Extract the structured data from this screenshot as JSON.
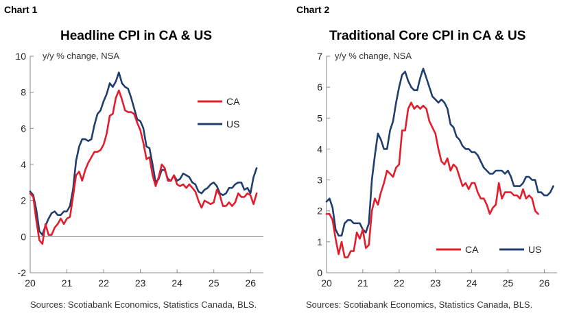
{
  "charts": [
    {
      "chart_number": "Chart 1",
      "source": "Sources: Scotiabank Economics, Statistics Canada, BLS.",
      "chart_data": {
        "type": "line",
        "title": "Headline CPI in CA & US",
        "ylabel": "y/y % change, NSA",
        "xlabel": "",
        "x_start": 2020.0,
        "x_step": 0.0833,
        "xlim": [
          2020,
          2026.35
        ],
        "ylim": [
          -2,
          10
        ],
        "yticks": [
          -2,
          0,
          2,
          4,
          6,
          8,
          10
        ],
        "xticks": [
          20,
          21,
          22,
          23,
          24,
          25,
          26
        ],
        "legend_position": "right",
        "series": [
          {
            "name": "CA",
            "color": "#e31d2b",
            "values": [
              2.4,
              2.2,
              0.9,
              -0.2,
              -0.4,
              0.7,
              0.1,
              0.1,
              0.5,
              0.7,
              1.0,
              0.7,
              1.0,
              1.1,
              2.2,
              3.4,
              3.6,
              3.1,
              3.7,
              4.1,
              4.4,
              4.7,
              4.7,
              4.8,
              5.1,
              5.7,
              6.7,
              6.8,
              7.7,
              8.1,
              7.6,
              7.0,
              6.9,
              6.9,
              6.8,
              6.3,
              5.9,
              5.2,
              4.3,
              4.4,
              3.4,
              2.8,
              3.3,
              4.0,
              3.8,
              3.1,
              3.1,
              3.4,
              2.9,
              2.8,
              2.9,
              2.7,
              2.9,
              2.7,
              2.5,
              2.0,
              1.6,
              2.0,
              1.9,
              1.8,
              1.9,
              2.6,
              2.3,
              1.7,
              1.7,
              1.9,
              1.7,
              1.9,
              2.4,
              2.2,
              2.2,
              2.4,
              2.3,
              1.8,
              2.4
            ]
          },
          {
            "name": "US",
            "color": "#1f3d6d",
            "values": [
              2.5,
              2.3,
              1.5,
              0.3,
              0.1,
              0.6,
              1.0,
              1.3,
              1.4,
              1.2,
              1.2,
              1.4,
              1.4,
              1.7,
              2.6,
              4.2,
              5.0,
              5.4,
              5.4,
              5.3,
              5.4,
              6.2,
              6.8,
              7.0,
              7.5,
              7.9,
              8.5,
              8.3,
              8.6,
              9.1,
              8.5,
              8.3,
              8.2,
              7.7,
              7.1,
              6.5,
              6.4,
              6.0,
              5.0,
              4.9,
              4.0,
              3.0,
              3.2,
              3.7,
              3.7,
              3.2,
              3.1,
              3.4,
              3.1,
              3.2,
              3.5,
              3.4,
              3.3,
              3.0,
              2.9,
              2.5,
              2.4,
              2.6,
              2.7,
              2.9,
              3.0,
              2.8,
              2.4,
              2.3,
              2.4,
              2.7,
              2.7,
              2.9,
              3.0,
              3.0,
              2.6,
              2.7,
              2.4,
              3.3,
              3.8
            ]
          }
        ]
      }
    },
    {
      "chart_number": "Chart 2",
      "source": "Sources: Scotiabank Economics, Statistics Canada, BLS.",
      "chart_data": {
        "type": "line",
        "title": "Traditional Core CPI in CA & US",
        "ylabel": "y/y % change, NSA",
        "xlabel": "",
        "x_start": 2020.0,
        "x_step": 0.0833,
        "xlim": [
          2020,
          2026.35
        ],
        "ylim": [
          0,
          7
        ],
        "yticks": [
          0,
          1,
          2,
          3,
          4,
          5,
          6,
          7
        ],
        "xticks": [
          20,
          21,
          22,
          23,
          24,
          25,
          26
        ],
        "legend_position": "bottom-right",
        "series": [
          {
            "name": "CA",
            "color": "#e31d2b",
            "values": [
              1.9,
              1.9,
              1.7,
              1.1,
              0.6,
              1.0,
              0.5,
              0.5,
              0.7,
              0.7,
              1.3,
              1.1,
              1.4,
              0.8,
              0.9,
              2.0,
              2.4,
              2.2,
              2.6,
              2.9,
              3.3,
              3.2,
              3.1,
              3.4,
              3.5,
              4.6,
              4.6,
              5.3,
              5.5,
              5.3,
              5.4,
              5.3,
              5.4,
              5.3,
              4.9,
              4.7,
              4.5,
              4.0,
              3.6,
              3.5,
              3.7,
              3.3,
              3.5,
              3.4,
              3.1,
              2.8,
              2.9,
              2.7,
              2.9,
              2.9,
              2.6,
              2.4,
              2.4,
              2.2,
              1.9,
              2.1,
              2.2,
              2.9,
              2.4,
              2.6,
              2.6,
              2.6,
              2.5,
              2.5,
              2.4,
              2.7,
              2.4,
              2.5,
              2.4,
              2.0,
              1.9
            ]
          },
          {
            "name": "US",
            "color": "#1f3d6d",
            "values": [
              2.3,
              2.4,
              2.1,
              1.4,
              1.2,
              1.2,
              1.6,
              1.7,
              1.7,
              1.6,
              1.6,
              1.6,
              1.4,
              1.3,
              1.6,
              3.0,
              3.8,
              4.5,
              4.3,
              4.0,
              4.0,
              4.6,
              4.9,
              5.5,
              6.0,
              6.4,
              6.5,
              6.2,
              6.0,
              5.9,
              5.9,
              6.3,
              6.6,
              6.3,
              6.0,
              5.7,
              5.6,
              5.5,
              5.6,
              5.5,
              5.3,
              4.8,
              4.7,
              4.4,
              4.3,
              4.1,
              4.0,
              4.0,
              3.9,
              3.9,
              3.8,
              3.6,
              3.4,
              3.3,
              3.2,
              3.2,
              3.3,
              3.3,
              3.3,
              3.2,
              3.3,
              3.1,
              2.8,
              2.8,
              2.8,
              2.9,
              3.1,
              3.1,
              3.0,
              3.0,
              2.6,
              2.6,
              2.5,
              2.5,
              2.6,
              2.8
            ]
          }
        ]
      }
    }
  ]
}
